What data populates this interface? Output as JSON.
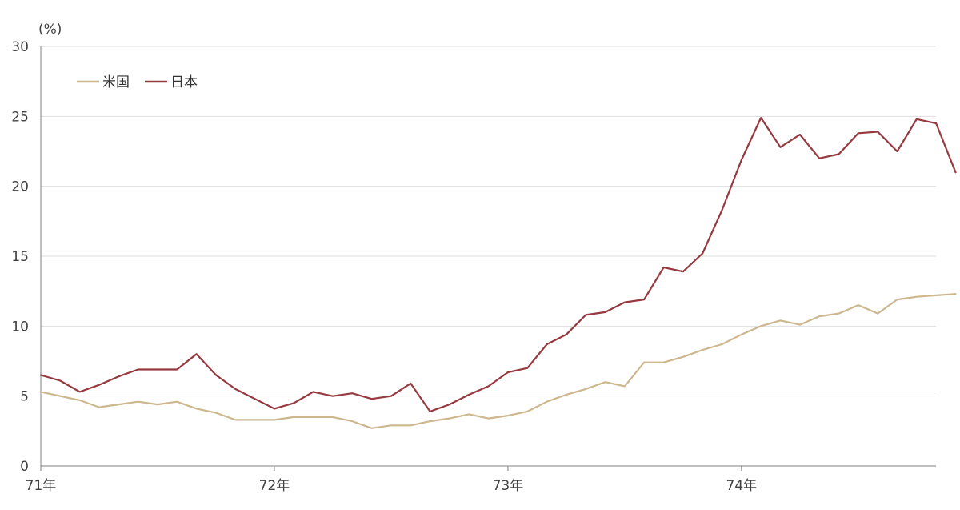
{
  "colors": {
    "us": "#cdb78e",
    "japan": "#963a40",
    "grid": "#dedede",
    "axis": "#7f7f7f"
  },
  "chart_data": {
    "type": "line",
    "ylabel": "(%)",
    "ylim": [
      0,
      30
    ],
    "yticks": [
      0,
      5,
      10,
      15,
      20,
      25,
      30
    ],
    "grid": true,
    "legend_position": "top-left",
    "x_start": "1971-01",
    "x_ticks": [
      {
        "label": "71年",
        "index": 0
      },
      {
        "label": "72年",
        "index": 12
      },
      {
        "label": "73年",
        "index": 24
      },
      {
        "label": "74年",
        "index": 36
      }
    ],
    "series": [
      {
        "name": "米国",
        "color": "#cdb78e",
        "values": [
          5.3,
          5.0,
          4.7,
          4.2,
          4.4,
          4.6,
          4.4,
          4.6,
          4.1,
          3.8,
          3.3,
          3.3,
          3.3,
          3.5,
          3.5,
          3.5,
          3.2,
          2.7,
          2.9,
          2.9,
          3.2,
          3.4,
          3.7,
          3.4,
          3.6,
          3.9,
          4.6,
          5.1,
          5.5,
          6.0,
          5.7,
          7.4,
          7.4,
          7.8,
          8.3,
          8.7,
          9.4,
          10.0,
          10.4,
          10.1,
          10.7,
          10.9,
          11.5,
          10.9,
          11.9,
          12.1,
          12.2,
          12.3
        ]
      },
      {
        "name": "日本",
        "color": "#963a40",
        "values": [
          6.5,
          6.1,
          5.3,
          5.8,
          6.4,
          6.9,
          6.9,
          6.9,
          8.0,
          6.5,
          5.5,
          4.8,
          4.1,
          4.5,
          5.3,
          5.0,
          5.2,
          4.8,
          5.0,
          5.9,
          3.9,
          4.4,
          5.1,
          5.7,
          6.7,
          7.0,
          8.7,
          9.4,
          10.8,
          11.0,
          11.7,
          11.9,
          14.2,
          13.9,
          15.2,
          18.3,
          21.9,
          24.9,
          22.8,
          23.7,
          22.0,
          22.3,
          23.8,
          23.9,
          22.5,
          24.8,
          24.5,
          21.0
        ]
      }
    ]
  }
}
